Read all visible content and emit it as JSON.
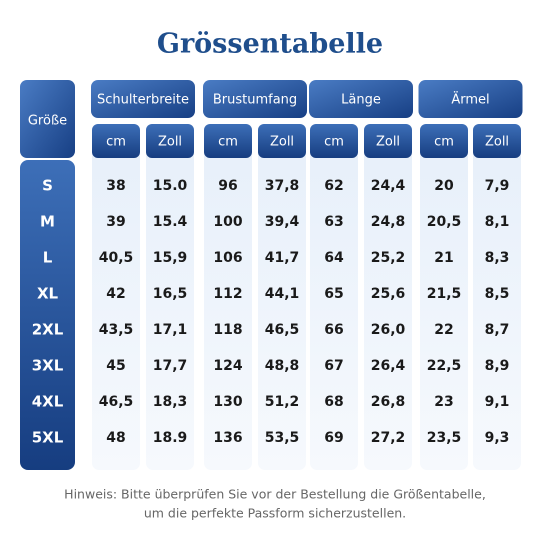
{
  "header": {
    "title": "Grössentabelle"
  },
  "table": {
    "corner": "Größe",
    "groups": [
      "Schulterbreite",
      "Brustumfang",
      "Länge",
      "Ärmel"
    ],
    "units": [
      "cm",
      "Zoll",
      "cm",
      "Zoll",
      "cm",
      "Zoll",
      "cm",
      "Zoll"
    ],
    "rows": [
      [
        "S",
        "38",
        "15.0",
        "96",
        "37,8",
        "62",
        "24,4",
        "20",
        "7,9"
      ],
      [
        "M",
        "39",
        "15.4",
        "100",
        "39,4",
        "63",
        "24,8",
        "20,5",
        "8,1"
      ],
      [
        "L",
        "40,5",
        "15,9",
        "106",
        "41,7",
        "64",
        "25,2",
        "21",
        "8,3"
      ],
      [
        "XL",
        "42",
        "16,5",
        "112",
        "44,1",
        "65",
        "25,6",
        "21,5",
        "8,5"
      ],
      [
        "2XL",
        "43,5",
        "17,1",
        "118",
        "46,5",
        "66",
        "26,0",
        "22",
        "8,7"
      ],
      [
        "3XL",
        "45",
        "17,7",
        "124",
        "48,8",
        "67",
        "26,4",
        "22,5",
        "8,9"
      ],
      [
        "4XL",
        "46,5",
        "18,3",
        "130",
        "51,2",
        "68",
        "26,8",
        "23",
        "9,1"
      ],
      [
        "5XL",
        "48",
        "18.9",
        "136",
        "53,5",
        "69",
        "27,2",
        "23,5",
        "9,3"
      ]
    ]
  },
  "footer": {
    "lines": [
      "Hinweis: Bitte überprüfen Sie vor der Bestellung die Größentabelle,",
      "um die perfekte Passform sicherzustellen."
    ]
  }
}
